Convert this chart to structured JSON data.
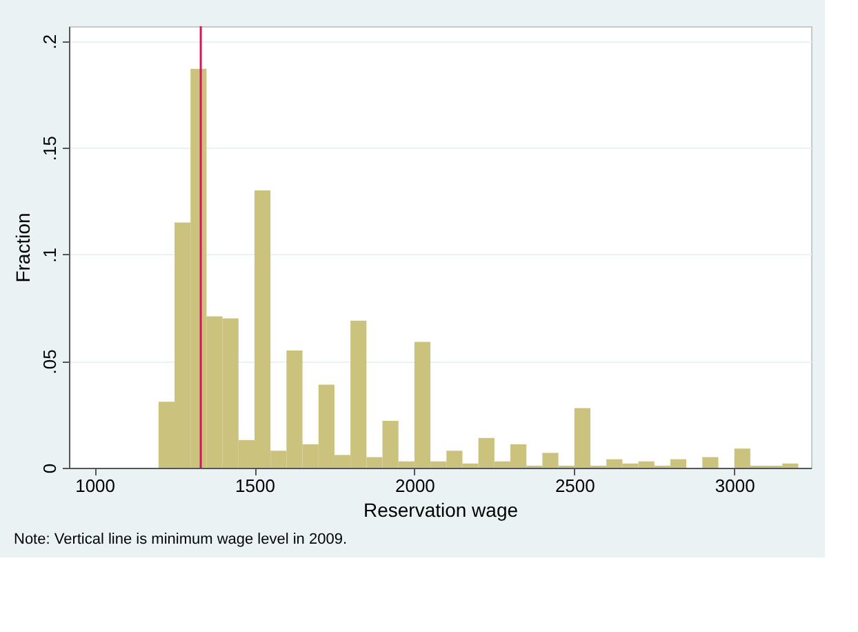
{
  "chart_data": {
    "type": "histogram",
    "xlabel": "Reservation wage",
    "ylabel": "Fraction",
    "bins": [
      1200,
      1250,
      1300,
      1350,
      1400,
      1450,
      1500,
      1550,
      1600,
      1650,
      1700,
      1750,
      1800,
      1850,
      1900,
      1950,
      2000,
      2050,
      2100,
      2150,
      2200,
      2250,
      2300,
      2350,
      2400,
      2450,
      2500,
      2550,
      2600,
      2650,
      2700,
      2750,
      2800,
      2850,
      2900,
      2950,
      3000,
      3050,
      3100,
      3150,
      3200
    ],
    "values": [
      0.031,
      0.115,
      0.187,
      0.071,
      0.07,
      0.013,
      0.13,
      0.008,
      0.055,
      0.011,
      0.039,
      0.006,
      0.069,
      0.005,
      0.022,
      0.003,
      0.059,
      0.003,
      0.008,
      0.002,
      0.014,
      0.003,
      0.011,
      0.001,
      0.007,
      0.001,
      0.028,
      0.001,
      0.004,
      0.002,
      0.003,
      0.001,
      0.004,
      0,
      0.005,
      0,
      0.009,
      0.001,
      0.001,
      0.002
    ],
    "color": "#cbc27e",
    "xlim": [
      920,
      3240
    ],
    "xticks": [
      1000,
      1500,
      2000,
      2500,
      3000
    ],
    "ylim": [
      0,
      0.207
    ],
    "yticks": [
      {
        "value": 0,
        "label": "0"
      },
      {
        "value": 0.05,
        "label": ".05"
      },
      {
        "value": 0.1,
        "label": ".1"
      },
      {
        "value": 0.15,
        "label": ".15"
      },
      {
        "value": 0.2,
        "label": ".2"
      }
    ],
    "grid": "y",
    "ref_lines": [
      {
        "axis": "x",
        "value": 1332,
        "color": "#d0185a"
      }
    ],
    "annotations": [
      "Note: Vertical line is minimum wage level in 2009."
    ]
  }
}
